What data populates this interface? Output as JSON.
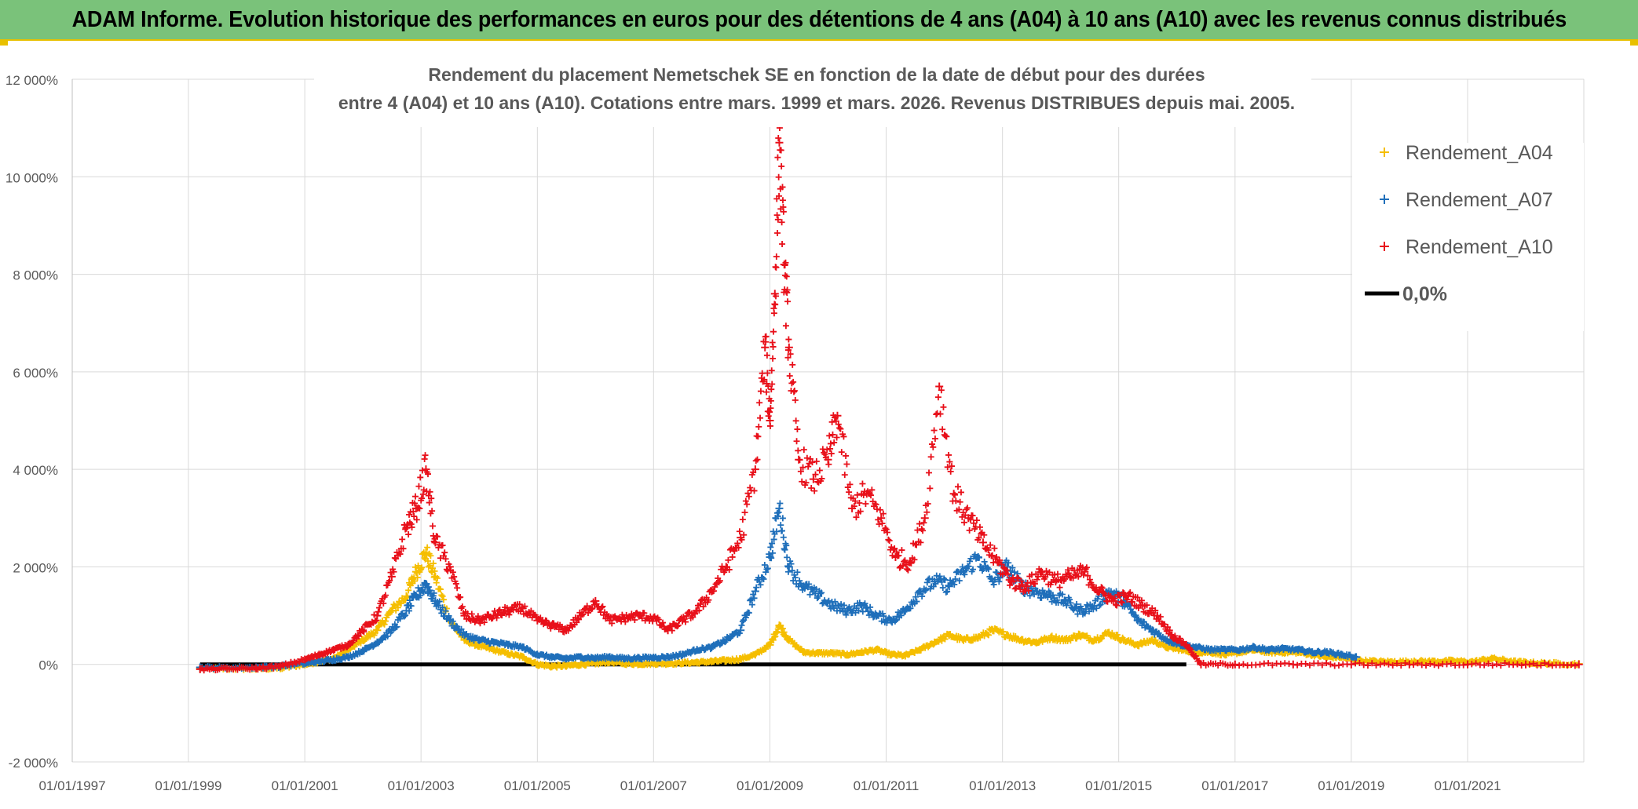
{
  "banner_title": "ADAM Informe. Evolution historique des performances en euros pour des détentions de 4 ans (A04) à 10 ans (A10) avec les revenus connus distribués",
  "colors": {
    "banner_bg": "#7ac27a",
    "a04": "#f5be00",
    "a07": "#1f6fba",
    "a10": "#e8101a",
    "zero": "#000000",
    "grid": "#d9d9d9"
  },
  "chart_data": {
    "type": "scatter",
    "title_line1": "Rendement du placement Nemetschek SE en fonction de la date de début pour des durées",
    "title_line2": "entre 4 (A04) et 10 ans (A10). Cotations entre mars. 1999 et mars. 2026. Revenus DISTRIBUES depuis mai. 2005.",
    "xlim": [
      "1997-01-01",
      "2023-01-01"
    ],
    "ylim": [
      -2000,
      12000
    ],
    "y_ticks": [
      -2000,
      0,
      2000,
      4000,
      6000,
      8000,
      10000,
      12000
    ],
    "y_tick_labels": [
      "-2 000%",
      "0%",
      "2 000%",
      "4 000%",
      "6 000%",
      "8 000%",
      "10 000%",
      "12 000%"
    ],
    "x_ticks": [
      "1997-01-01",
      "1999-01-01",
      "2001-01-01",
      "2003-01-01",
      "2005-01-01",
      "2007-01-01",
      "2009-01-01",
      "2011-01-01",
      "2013-01-01",
      "2015-01-01",
      "2017-01-01",
      "2019-01-01",
      "2021-01-01"
    ],
    "x_tick_labels": [
      "01/01/1997",
      "01/01/1999",
      "01/01/2001",
      "01/01/2003",
      "01/01/2005",
      "01/01/2007",
      "01/01/2009",
      "01/01/2011",
      "01/01/2013",
      "01/01/2015",
      "01/01/2017",
      "01/01/2019",
      "01/01/2021"
    ],
    "grid": true,
    "legend_position": "top-right",
    "series": [
      {
        "name": "Rendement_A04",
        "color": "#f5be00",
        "marker": "+",
        "points": [
          [
            "1999-03-15",
            -80
          ],
          [
            "1999-09-01",
            -90
          ],
          [
            "2000-03-01",
            -90
          ],
          [
            "2000-08-01",
            -80
          ],
          [
            "2001-01-01",
            0
          ],
          [
            "2001-04-01",
            60
          ],
          [
            "2001-07-01",
            120
          ],
          [
            "2001-10-01",
            300
          ],
          [
            "2002-01-01",
            500
          ],
          [
            "2002-04-01",
            700
          ],
          [
            "2002-07-01",
            1100
          ],
          [
            "2002-10-01",
            1400
          ],
          [
            "2002-12-01",
            1900
          ],
          [
            "2003-02-01",
            2300
          ],
          [
            "2003-04-01",
            1800
          ],
          [
            "2003-07-01",
            900
          ],
          [
            "2003-10-01",
            500
          ],
          [
            "2004-01-01",
            380
          ],
          [
            "2004-04-01",
            300
          ],
          [
            "2004-07-01",
            220
          ],
          [
            "2004-10-01",
            150
          ],
          [
            "2005-01-01",
            0
          ],
          [
            "2005-04-01",
            -40
          ],
          [
            "2005-07-01",
            -30
          ],
          [
            "2005-10-01",
            0
          ],
          [
            "2006-01-01",
            20
          ],
          [
            "2006-04-01",
            50
          ],
          [
            "2006-07-01",
            20
          ],
          [
            "2006-10-01",
            10
          ],
          [
            "2007-01-01",
            20
          ],
          [
            "2007-04-01",
            20
          ],
          [
            "2007-07-01",
            30
          ],
          [
            "2007-10-01",
            40
          ],
          [
            "2008-01-01",
            60
          ],
          [
            "2008-04-01",
            80
          ],
          [
            "2008-07-01",
            110
          ],
          [
            "2008-10-01",
            200
          ],
          [
            "2009-01-01",
            400
          ],
          [
            "2009-03-01",
            800
          ],
          [
            "2009-05-01",
            500
          ],
          [
            "2009-08-01",
            250
          ],
          [
            "2009-11-01",
            230
          ],
          [
            "2010-02-01",
            230
          ],
          [
            "2010-05-01",
            200
          ],
          [
            "2010-08-01",
            250
          ],
          [
            "2010-11-01",
            300
          ],
          [
            "2011-02-01",
            200
          ],
          [
            "2011-05-01",
            180
          ],
          [
            "2011-08-01",
            300
          ],
          [
            "2011-11-01",
            450
          ],
          [
            "2012-02-01",
            600
          ],
          [
            "2012-05-01",
            500
          ],
          [
            "2012-08-01",
            550
          ],
          [
            "2012-11-01",
            700
          ],
          [
            "2013-02-01",
            600
          ],
          [
            "2013-05-01",
            500
          ],
          [
            "2013-08-01",
            450
          ],
          [
            "2013-11-01",
            550
          ],
          [
            "2014-02-01",
            500
          ],
          [
            "2014-05-01",
            600
          ],
          [
            "2014-08-01",
            500
          ],
          [
            "2014-11-01",
            650
          ],
          [
            "2015-02-01",
            500
          ],
          [
            "2015-05-01",
            400
          ],
          [
            "2015-08-01",
            500
          ],
          [
            "2015-11-01",
            350
          ],
          [
            "2016-02-01",
            300
          ],
          [
            "2016-05-01",
            250
          ],
          [
            "2016-08-01",
            250
          ],
          [
            "2016-11-01",
            200
          ],
          [
            "2017-02-01",
            250
          ],
          [
            "2017-05-01",
            300
          ],
          [
            "2017-08-01",
            250
          ],
          [
            "2017-11-01",
            250
          ],
          [
            "2018-02-01",
            250
          ],
          [
            "2018-05-01",
            200
          ],
          [
            "2018-08-01",
            150
          ],
          [
            "2018-11-01",
            150
          ],
          [
            "2019-02-01",
            80
          ],
          [
            "2019-06-01",
            60
          ],
          [
            "2019-10-01",
            50
          ],
          [
            "2020-02-01",
            60
          ],
          [
            "2020-06-01",
            60
          ],
          [
            "2020-10-01",
            70
          ],
          [
            "2021-02-01",
            50
          ],
          [
            "2021-06-01",
            120
          ],
          [
            "2021-10-01",
            60
          ],
          [
            "2022-02-01",
            30
          ],
          [
            "2022-06-01",
            20
          ],
          [
            "2022-12-01",
            10
          ]
        ]
      },
      {
        "name": "Rendement_A07",
        "color": "#1f6fba",
        "marker": "+",
        "points": [
          [
            "1999-03-15",
            -60
          ],
          [
            "1999-09-01",
            -70
          ],
          [
            "2000-03-01",
            -60
          ],
          [
            "2000-08-01",
            -40
          ],
          [
            "2001-01-01",
            20
          ],
          [
            "2001-04-01",
            60
          ],
          [
            "2001-07-01",
            100
          ],
          [
            "2001-10-01",
            150
          ],
          [
            "2002-01-01",
            280
          ],
          [
            "2002-04-01",
            450
          ],
          [
            "2002-07-01",
            700
          ],
          [
            "2002-10-01",
            1100
          ],
          [
            "2002-12-01",
            1400
          ],
          [
            "2003-02-01",
            1650
          ],
          [
            "2003-04-01",
            1300
          ],
          [
            "2003-07-01",
            900
          ],
          [
            "2003-10-01",
            600
          ],
          [
            "2004-01-01",
            500
          ],
          [
            "2004-04-01",
            450
          ],
          [
            "2004-07-01",
            400
          ],
          [
            "2004-10-01",
            350
          ],
          [
            "2005-01-01",
            200
          ],
          [
            "2005-04-01",
            150
          ],
          [
            "2005-07-01",
            120
          ],
          [
            "2005-10-01",
            150
          ],
          [
            "2006-01-01",
            130
          ],
          [
            "2006-04-01",
            150
          ],
          [
            "2006-07-01",
            120
          ],
          [
            "2006-10-01",
            130
          ],
          [
            "2007-01-01",
            140
          ],
          [
            "2007-04-01",
            150
          ],
          [
            "2007-07-01",
            200
          ],
          [
            "2007-10-01",
            300
          ],
          [
            "2008-01-01",
            350
          ],
          [
            "2008-04-01",
            500
          ],
          [
            "2008-07-01",
            700
          ],
          [
            "2008-10-01",
            1500
          ],
          [
            "2009-01-01",
            2200
          ],
          [
            "2009-03-01",
            3200
          ],
          [
            "2009-05-01",
            2000
          ],
          [
            "2009-08-01",
            1600
          ],
          [
            "2009-11-01",
            1400
          ],
          [
            "2010-02-01",
            1200
          ],
          [
            "2010-05-01",
            1100
          ],
          [
            "2010-08-01",
            1200
          ],
          [
            "2010-11-01",
            1000
          ],
          [
            "2011-02-01",
            900
          ],
          [
            "2011-05-01",
            1100
          ],
          [
            "2011-08-01",
            1500
          ],
          [
            "2011-11-01",
            1700
          ],
          [
            "2012-02-01",
            1600
          ],
          [
            "2012-05-01",
            1900
          ],
          [
            "2012-08-01",
            2200
          ],
          [
            "2012-11-01",
            1700
          ],
          [
            "2013-02-01",
            2000
          ],
          [
            "2013-05-01",
            1600
          ],
          [
            "2013-08-01",
            1500
          ],
          [
            "2013-11-01",
            1400
          ],
          [
            "2014-02-01",
            1300
          ],
          [
            "2014-05-01",
            1100
          ],
          [
            "2014-08-01",
            1200
          ],
          [
            "2014-11-01",
            1500
          ],
          [
            "2015-02-01",
            1300
          ],
          [
            "2015-05-01",
            900
          ],
          [
            "2015-08-01",
            700
          ],
          [
            "2015-11-01",
            500
          ],
          [
            "2016-02-01",
            400
          ],
          [
            "2016-05-01",
            350
          ],
          [
            "2016-08-01",
            300
          ],
          [
            "2016-11-01",
            300
          ],
          [
            "2017-02-01",
            300
          ],
          [
            "2017-05-01",
            350
          ],
          [
            "2017-08-01",
            300
          ],
          [
            "2017-11-01",
            320
          ],
          [
            "2018-02-01",
            300
          ],
          [
            "2018-05-01",
            250
          ],
          [
            "2018-08-01",
            250
          ],
          [
            "2018-11-01",
            200
          ],
          [
            "2019-02-01",
            150
          ]
        ]
      },
      {
        "name": "Rendement_A10",
        "color": "#e8101a",
        "marker": "+",
        "points": [
          [
            "1999-03-15",
            -100
          ],
          [
            "1999-09-01",
            -90
          ],
          [
            "2000-03-01",
            -80
          ],
          [
            "2000-08-01",
            -40
          ],
          [
            "2001-01-01",
            100
          ],
          [
            "2001-04-01",
            200
          ],
          [
            "2001-07-01",
            300
          ],
          [
            "2001-10-01",
            400
          ],
          [
            "2002-01-01",
            700
          ],
          [
            "2002-04-01",
            1000
          ],
          [
            "2002-07-01",
            1800
          ],
          [
            "2002-10-01",
            2800
          ],
          [
            "2002-12-01",
            3200
          ],
          [
            "2003-02-01",
            4000
          ],
          [
            "2003-04-01",
            2500
          ],
          [
            "2003-07-01",
            2000
          ],
          [
            "2003-10-01",
            1000
          ],
          [
            "2004-01-01",
            900
          ],
          [
            "2004-04-01",
            1000
          ],
          [
            "2004-07-01",
            1100
          ],
          [
            "2004-10-01",
            1150
          ],
          [
            "2005-01-01",
            900
          ],
          [
            "2005-04-01",
            800
          ],
          [
            "2005-07-01",
            700
          ],
          [
            "2005-10-01",
            1000
          ],
          [
            "2006-01-01",
            1300
          ],
          [
            "2006-04-01",
            900
          ],
          [
            "2006-07-01",
            950
          ],
          [
            "2006-10-01",
            1000
          ],
          [
            "2007-01-01",
            950
          ],
          [
            "2007-04-01",
            700
          ],
          [
            "2007-07-01",
            900
          ],
          [
            "2007-10-01",
            1100
          ],
          [
            "2008-01-01",
            1500
          ],
          [
            "2008-04-01",
            2000
          ],
          [
            "2008-07-01",
            2600
          ],
          [
            "2008-10-01",
            4000
          ],
          [
            "2008-12-01",
            6500
          ],
          [
            "2009-01-01",
            5000
          ],
          [
            "2009-02-01",
            7600
          ],
          [
            "2009-03-01",
            10700
          ],
          [
            "2009-04-01",
            8200
          ],
          [
            "2009-05-01",
            6500
          ],
          [
            "2009-07-01",
            4200
          ],
          [
            "2009-10-01",
            3800
          ],
          [
            "2010-01-01",
            4200
          ],
          [
            "2010-03-01",
            5100
          ],
          [
            "2010-06-01",
            3200
          ],
          [
            "2010-09-01",
            3500
          ],
          [
            "2010-12-01",
            3000
          ],
          [
            "2011-03-01",
            2200
          ],
          [
            "2011-06-01",
            2100
          ],
          [
            "2011-09-01",
            3000
          ],
          [
            "2011-12-01",
            5700
          ],
          [
            "2012-03-01",
            3500
          ],
          [
            "2012-06-01",
            3000
          ],
          [
            "2012-09-01",
            2500
          ],
          [
            "2012-12-01",
            2100
          ],
          [
            "2013-03-01",
            1700
          ],
          [
            "2013-06-01",
            1600
          ],
          [
            "2013-09-01",
            1900
          ],
          [
            "2013-12-01",
            1700
          ],
          [
            "2014-03-01",
            1800
          ],
          [
            "2014-06-01",
            1900
          ],
          [
            "2014-09-01",
            1500
          ],
          [
            "2014-12-01",
            1300
          ],
          [
            "2015-03-01",
            1400
          ],
          [
            "2015-06-01",
            1200
          ],
          [
            "2015-09-01",
            1000
          ],
          [
            "2015-12-01",
            600
          ],
          [
            "2016-03-01",
            400
          ],
          [
            "2016-06-01",
            0
          ],
          [
            "2017-01-01",
            0
          ],
          [
            "2018-01-01",
            0
          ],
          [
            "2019-01-01",
            0
          ],
          [
            "2020-01-01",
            0
          ],
          [
            "2021-01-01",
            0
          ],
          [
            "2022-01-01",
            0
          ],
          [
            "2022-12-01",
            0
          ]
        ]
      },
      {
        "name": "0,0%",
        "color": "#000000",
        "type": "line",
        "x": [
          "1999-03-15",
          "2016-03-01"
        ],
        "values": [
          0,
          0
        ]
      }
    ]
  }
}
